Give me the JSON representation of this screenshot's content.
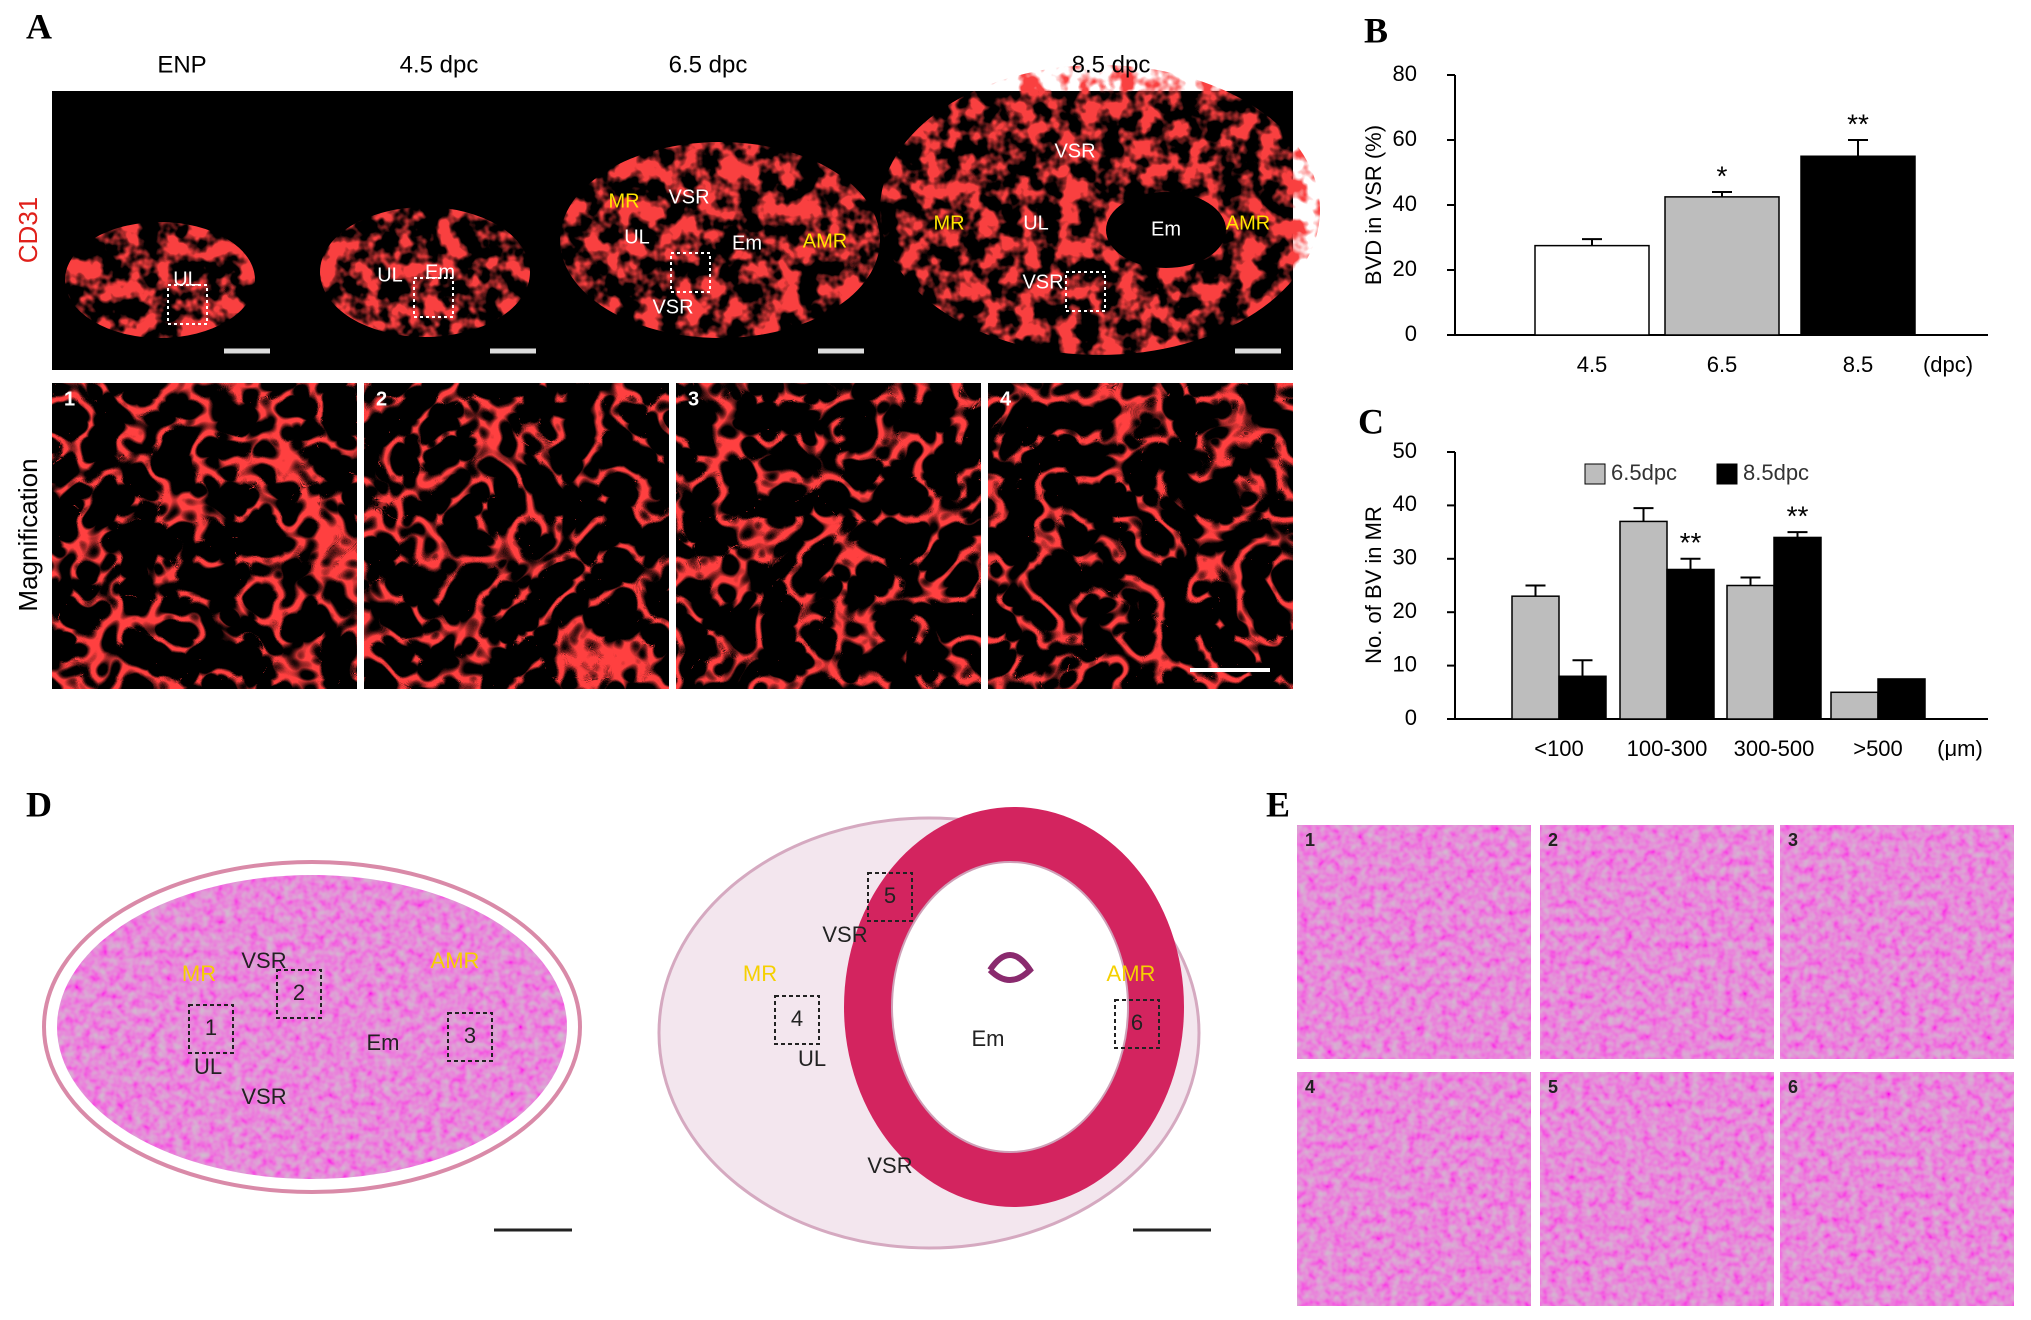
{
  "panel_a": {
    "letter": "A",
    "stain_label": "CD31",
    "row_label": "Magnification",
    "columns": [
      "ENP",
      "4.5 dpc",
      "6.5 dpc",
      "8.5 dpc"
    ],
    "section_labels": [
      [
        "UL"
      ],
      [
        "UL",
        "Em"
      ],
      [
        "MR",
        "VSR",
        "UL",
        "Em",
        "AMR",
        "VSR"
      ],
      [
        "VSR",
        "MR",
        "UL",
        "Em",
        "AMR",
        "VSR"
      ]
    ],
    "tile_numbers": [
      "1",
      "2",
      "3",
      "4"
    ]
  },
  "panel_d": {
    "letter": "D",
    "sections": [
      [
        "MR",
        "VSR",
        "2",
        "AMR",
        "1",
        "Em",
        "3",
        "UL",
        "VSR"
      ],
      [
        "5",
        "VSR",
        "MR",
        "AMR",
        "4",
        "UL",
        "Em",
        "6",
        "VSR"
      ]
    ]
  },
  "panel_e": {
    "letter": "E",
    "tile_numbers": [
      "1",
      "2",
      "3",
      "4",
      "5",
      "6"
    ]
  },
  "chart_data": [
    {
      "type": "bar",
      "panel_label": "B",
      "ylabel": "BVD in VSR (%)",
      "x_unit": "(dpc)",
      "categories": [
        "4.5",
        "6.5",
        "8.5"
      ],
      "values": [
        27.5,
        42.5,
        55
      ],
      "errors": [
        2,
        1.5,
        5
      ],
      "colors": [
        "#ffffff",
        "#bdbdbd",
        "#000000"
      ],
      "significance": [
        null,
        "*",
        "**"
      ],
      "ylim": [
        0,
        80
      ],
      "yticks": [
        0,
        20,
        40,
        60,
        80
      ]
    },
    {
      "type": "bar",
      "panel_label": "C",
      "ylabel": "No. of BV in MR",
      "x_unit": "(μm)",
      "categories": [
        "<100",
        "100-300",
        "300-500",
        ">500"
      ],
      "series": [
        {
          "name": "6.5dpc",
          "color": "#bdbdbd",
          "values": [
            23,
            37,
            25,
            5
          ],
          "errors": [
            2,
            2.5,
            1.5,
            null
          ],
          "significance": [
            null,
            null,
            null,
            null
          ]
        },
        {
          "name": "8.5dpc",
          "color": "#000000",
          "values": [
            8,
            28,
            34,
            7.5
          ],
          "errors": [
            3,
            2,
            1,
            null
          ],
          "significance": [
            null,
            "**",
            "**",
            null
          ]
        }
      ],
      "ylim": [
        0,
        50
      ],
      "yticks": [
        0,
        10,
        20,
        30,
        40,
        50
      ],
      "legend": "top"
    }
  ]
}
